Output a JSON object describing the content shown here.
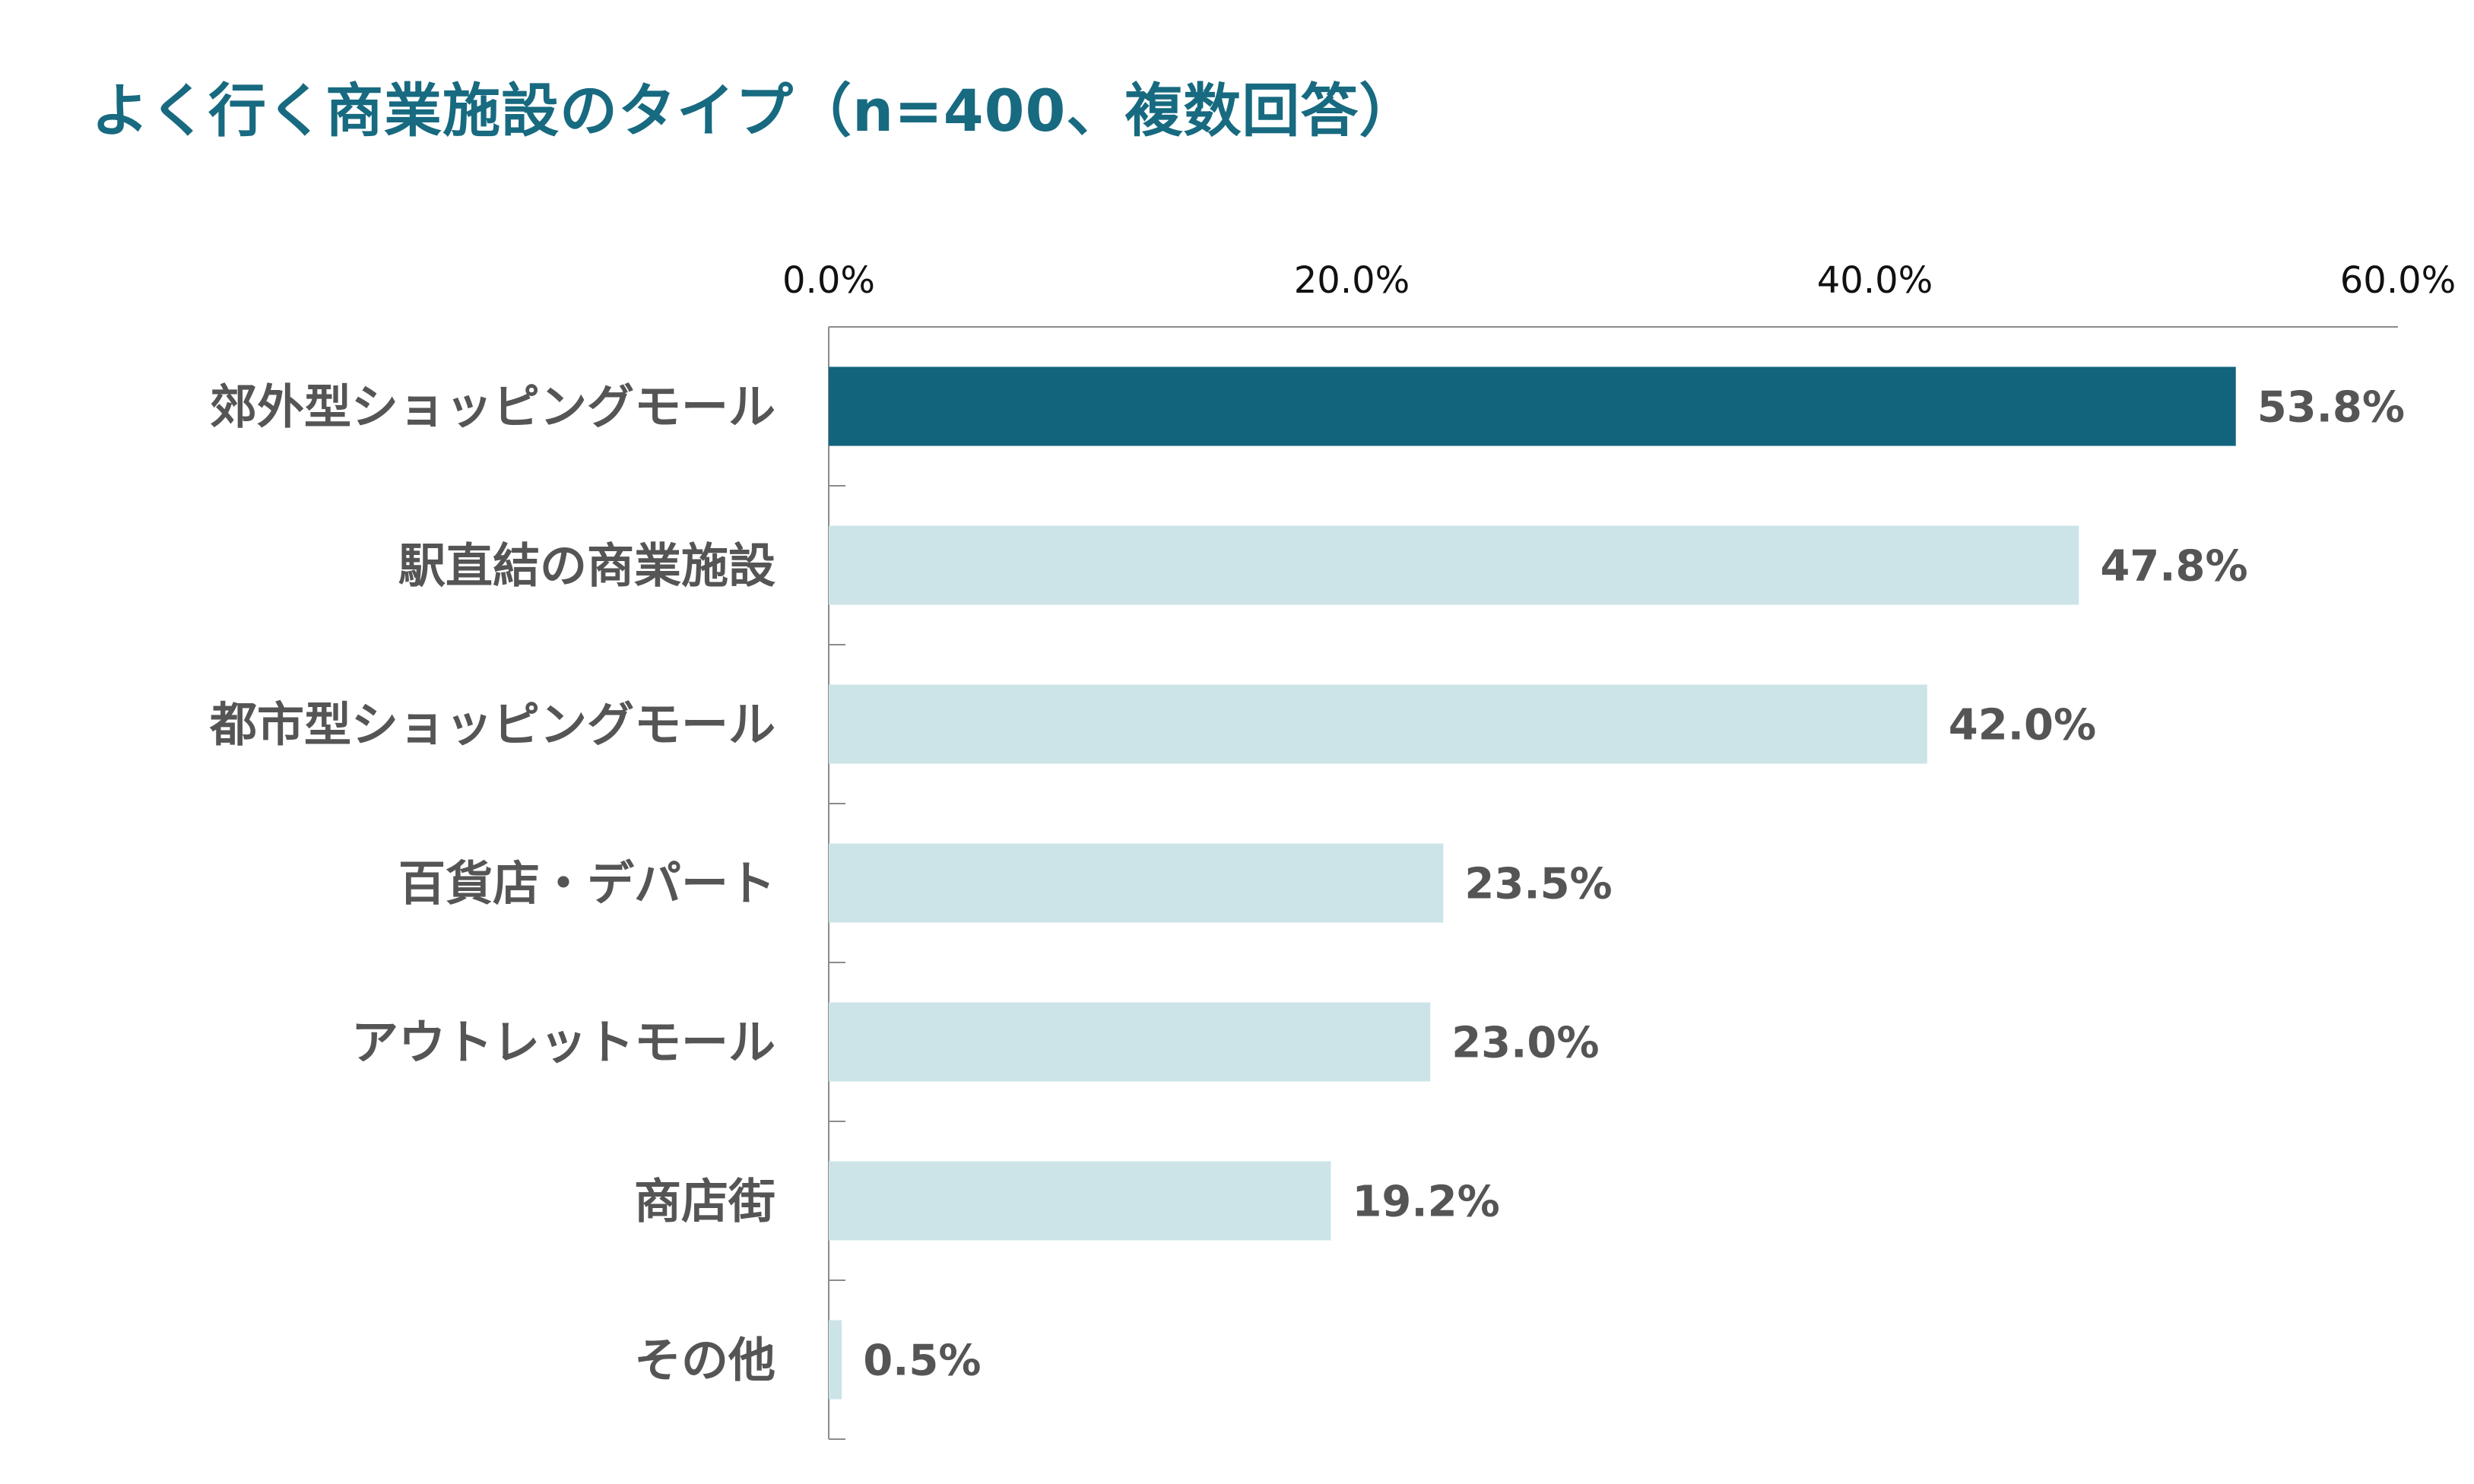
{
  "chart_data": {
    "type": "bar",
    "orientation": "horizontal",
    "title": "よく行く商業施設のタイプ（n=400、複数回答）",
    "categories": [
      "郊外型ショッピングモール",
      "駅直結の商業施設",
      "都市型ショッピングモール",
      "百貨店・デパート",
      "アウトレットモール",
      "商店街",
      "その他"
    ],
    "values": [
      53.8,
      47.8,
      42.0,
      23.5,
      23.0,
      19.2,
      0.5
    ],
    "value_labels": [
      "53.8%",
      "47.8%",
      "42.0%",
      "23.5%",
      "23.0%",
      "19.2%",
      "0.5%"
    ],
    "x_ticks": [
      0,
      20,
      40,
      60
    ],
    "x_tick_labels": [
      "0.0%",
      "20.0%",
      "40.0%",
      "60.0%"
    ],
    "xlim": [
      0,
      60
    ],
    "x_axis_position": "top",
    "grid": false,
    "legend": "none",
    "highlight_index": 0,
    "colors": {
      "title": "#176a80",
      "highlight_bar": "#12637c",
      "bar": "#cce4e8",
      "axis": "#8c8c8c",
      "tick_label": "#111111",
      "category_label": "#555555",
      "value_label": "#555555"
    }
  }
}
